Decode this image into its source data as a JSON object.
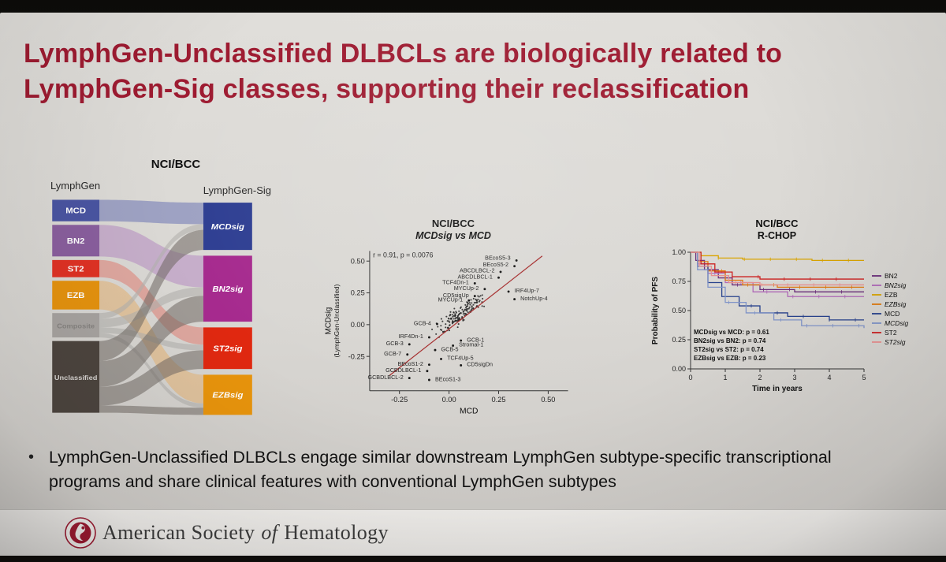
{
  "slide": {
    "title_line1": "LymphGen-Unclassified DLBCLs are biologically related to",
    "title_line2": "LymphGen-Sig classes, supporting their reclassification",
    "bullet_marker": "•",
    "bullet": "LymphGen-Unclassified DLBCLs engage similar downstream LymphGen subtype-specific transcriptional programs and share clinical features with conventional LymphGen subtypes",
    "footer": {
      "part1": "American Society",
      "of": "of",
      "part2": "Hematology"
    }
  },
  "chart_data": [
    {
      "id": "sankey",
      "type": "sankey",
      "title": "NCI/BCC",
      "left_label": "LymphGen",
      "right_label": "LymphGen-Sig",
      "left_nodes": [
        {
          "label": "MCD",
          "size": 30,
          "color": "#4a55a2",
          "text_color": "#ffffff"
        },
        {
          "label": "BN2",
          "size": 44,
          "color": "#8a5f9e",
          "text_color": "#ffffff"
        },
        {
          "label": "ST2",
          "size": 24,
          "color": "#e03224",
          "text_color": "#ffffff"
        },
        {
          "label": "EZB",
          "size": 40,
          "color": "#e6930e",
          "text_color": "#ffffff"
        },
        {
          "label": "Composite",
          "size": 34,
          "color": "#a8a4a1",
          "text_color": "#868380"
        },
        {
          "label": "Unclassified",
          "size": 100,
          "color": "#4d453f",
          "text_color": "#d9d6d3"
        }
      ],
      "right_nodes": [
        {
          "label": "MCDsig",
          "size": 66,
          "color": "#2e3e92"
        },
        {
          "label": "BN2sig",
          "size": 92,
          "color": "#a62a8e"
        },
        {
          "label": "ST2sig",
          "size": 58,
          "color": "#e02810"
        },
        {
          "label": "EZBsig",
          "size": 56,
          "color": "#e8940c"
        }
      ],
      "flows": [
        {
          "from": 0,
          "to": 0,
          "size": 30,
          "color": "#6b74b5",
          "opacity": 0.55
        },
        {
          "from": 1,
          "to": 1,
          "size": 44,
          "color": "#b183c0",
          "opacity": 0.5
        },
        {
          "from": 2,
          "to": 2,
          "size": 24,
          "color": "#e2756a",
          "opacity": 0.5
        },
        {
          "from": 3,
          "to": 3,
          "size": 40,
          "color": "#e8b06a",
          "opacity": 0.5
        },
        {
          "from": 4,
          "to": 0,
          "size": 8,
          "color": "#b3b0ad",
          "opacity": 0.6
        },
        {
          "from": 4,
          "to": 1,
          "size": 12,
          "color": "#b3b0ad",
          "opacity": 0.6
        },
        {
          "from": 4,
          "to": 2,
          "size": 8,
          "color": "#b3b0ad",
          "opacity": 0.6
        },
        {
          "from": 4,
          "to": 3,
          "size": 6,
          "color": "#b3b0ad",
          "opacity": 0.6
        },
        {
          "from": 5,
          "to": 0,
          "size": 28,
          "color": "#6f6862",
          "opacity": 0.55
        },
        {
          "from": 5,
          "to": 1,
          "size": 36,
          "color": "#6f6862",
          "opacity": 0.55
        },
        {
          "from": 5,
          "to": 2,
          "size": 26,
          "color": "#6f6862",
          "opacity": 0.55
        },
        {
          "from": 5,
          "to": 3,
          "size": 10,
          "color": "#6f6862",
          "opacity": 0.55
        }
      ]
    },
    {
      "id": "scatter",
      "type": "scatter",
      "title": "NCI/BCC",
      "subtitle": "MCDsig vs MCD",
      "annotation": "r = 0.91, p = 0.0076",
      "xlabel": "MCD",
      "ylabel_line1": "MCDsig",
      "ylabel_line2": "(LymphGen-Unclassified)",
      "xlim": [
        -0.4,
        0.6
      ],
      "ylim": [
        -0.52,
        0.58
      ],
      "xticks": [
        -0.25,
        0,
        0.25,
        0.5
      ],
      "yticks": [
        -0.25,
        0,
        0.25,
        0.5
      ],
      "regression": {
        "x1": -0.3,
        "y1": -0.4,
        "x2": 0.47,
        "y2": 0.54,
        "color": "#a42a2a"
      },
      "cloud": {
        "count": 150,
        "seed": 7
      },
      "labeled_points": [
        {
          "label": "BEcoS5-3",
          "x": 0.34,
          "y": 0.505,
          "lx": 0.31,
          "ly": 0.525,
          "anchor": "end"
        },
        {
          "label": "BEcoS5-2",
          "x": 0.33,
          "y": 0.46,
          "lx": 0.3,
          "ly": 0.47,
          "anchor": "end"
        },
        {
          "label": "ABCDLBCL-2",
          "x": 0.26,
          "y": 0.415,
          "lx": 0.23,
          "ly": 0.425,
          "anchor": "end"
        },
        {
          "label": "ABCDLBCL-1",
          "x": 0.25,
          "y": 0.37,
          "lx": 0.22,
          "ly": 0.375,
          "anchor": "end"
        },
        {
          "label": "TCF4Dn-1",
          "x": 0.13,
          "y": 0.325,
          "lx": 0.1,
          "ly": 0.33,
          "anchor": "end"
        },
        {
          "label": "MYCUp-2",
          "x": 0.18,
          "y": 0.28,
          "lx": 0.15,
          "ly": 0.285,
          "anchor": "end"
        },
        {
          "label": "IRF4Up-7",
          "x": 0.3,
          "y": 0.26,
          "lx": 0.33,
          "ly": 0.265,
          "anchor": "start"
        },
        {
          "label": "CD5sigUp",
          "x": 0.13,
          "y": 0.225,
          "lx": 0.1,
          "ly": 0.23,
          "anchor": "end"
        },
        {
          "label": "MYCUp-1",
          "x": 0.1,
          "y": 0.19,
          "lx": 0.07,
          "ly": 0.195,
          "anchor": "end"
        },
        {
          "label": "NotchUp-4",
          "x": 0.33,
          "y": 0.2,
          "lx": 0.36,
          "ly": 0.205,
          "anchor": "start"
        },
        {
          "label": "GCB-4",
          "x": -0.06,
          "y": 0.005,
          "lx": -0.09,
          "ly": 0.01,
          "anchor": "end"
        },
        {
          "label": "IRF4Dn-1",
          "x": -0.1,
          "y": -0.1,
          "lx": -0.13,
          "ly": -0.095,
          "anchor": "end"
        },
        {
          "label": "GCB-1",
          "x": 0.06,
          "y": -0.125,
          "lx": 0.09,
          "ly": -0.12,
          "anchor": "start"
        },
        {
          "label": "GCB-3",
          "x": -0.2,
          "y": -0.155,
          "lx": -0.23,
          "ly": -0.15,
          "anchor": "end"
        },
        {
          "label": "Stromal-1",
          "x": 0.02,
          "y": -0.165,
          "lx": 0.05,
          "ly": -0.16,
          "anchor": "start"
        },
        {
          "label": "GCB-5",
          "x": -0.07,
          "y": -0.2,
          "lx": -0.04,
          "ly": -0.195,
          "anchor": "start"
        },
        {
          "label": "GCB-7",
          "x": -0.21,
          "y": -0.235,
          "lx": -0.24,
          "ly": -0.23,
          "anchor": "end"
        },
        {
          "label": "TCF4Up-5",
          "x": -0.04,
          "y": -0.27,
          "lx": -0.01,
          "ly": -0.265,
          "anchor": "start"
        },
        {
          "label": "BEcoS1-2",
          "x": -0.1,
          "y": -0.315,
          "lx": -0.13,
          "ly": -0.31,
          "anchor": "end"
        },
        {
          "label": "CD5sigDn",
          "x": 0.06,
          "y": -0.32,
          "lx": 0.09,
          "ly": -0.315,
          "anchor": "start"
        },
        {
          "label": "GCBDLBCL-1",
          "x": -0.11,
          "y": -0.365,
          "lx": -0.14,
          "ly": -0.36,
          "anchor": "end"
        },
        {
          "label": "GCBDLBCL-2",
          "x": -0.2,
          "y": -0.42,
          "lx": -0.23,
          "ly": -0.415,
          "anchor": "end"
        },
        {
          "label": "BEcoS1-3",
          "x": -0.1,
          "y": -0.435,
          "lx": -0.07,
          "ly": -0.43,
          "anchor": "start"
        }
      ]
    },
    {
      "id": "km",
      "type": "line",
      "title": "NCI/BCC",
      "subtitle": "R-CHOP",
      "xlabel": "Time in years",
      "ylabel": "Probability of PFS",
      "xlim": [
        0,
        5
      ],
      "xticks": [
        0,
        1,
        2,
        3,
        4,
        5
      ],
      "yticks": [
        0,
        0.25,
        0.5,
        0.75,
        1.0
      ],
      "legend_position": "right",
      "annotations": [
        "MCDsig vs MCD: p = 0.61",
        "BN2sig vs BN2: p = 0.74",
        "ST2sig vs ST2: p = 0.74",
        "EZBsig vs EZB: p = 0.23"
      ],
      "series": [
        {
          "name": "BN2",
          "color": "#6a2d7a",
          "italic": false,
          "steps": [
            [
              0,
              1
            ],
            [
              0.15,
              0.93
            ],
            [
              0.4,
              0.85
            ],
            [
              0.8,
              0.78
            ],
            [
              1.2,
              0.72
            ],
            [
              2,
              0.68
            ],
            [
              3,
              0.66
            ],
            [
              5,
              0.66
            ]
          ]
        },
        {
          "name": "BN2sig",
          "color": "#b06ab8",
          "italic": true,
          "steps": [
            [
              0,
              1
            ],
            [
              0.2,
              0.9
            ],
            [
              0.5,
              0.82
            ],
            [
              1,
              0.74
            ],
            [
              1.8,
              0.66
            ],
            [
              2.8,
              0.62
            ],
            [
              5,
              0.62
            ]
          ]
        },
        {
          "name": "EZB",
          "color": "#d9a400",
          "italic": false,
          "steps": [
            [
              0,
              1
            ],
            [
              0.3,
              0.97
            ],
            [
              0.8,
              0.95
            ],
            [
              1.5,
              0.94
            ],
            [
              3.5,
              0.93
            ],
            [
              5,
              0.93
            ]
          ]
        },
        {
          "name": "EZBsig",
          "color": "#e07b10",
          "italic": true,
          "steps": [
            [
              0,
              1
            ],
            [
              0.2,
              0.92
            ],
            [
              0.5,
              0.84
            ],
            [
              1,
              0.76
            ],
            [
              1.5,
              0.72
            ],
            [
              2.5,
              0.7
            ],
            [
              5,
              0.7
            ]
          ]
        },
        {
          "name": "MCD",
          "color": "#27418c",
          "italic": false,
          "steps": [
            [
              0,
              1
            ],
            [
              0.2,
              0.88
            ],
            [
              0.5,
              0.74
            ],
            [
              0.9,
              0.62
            ],
            [
              1.4,
              0.54
            ],
            [
              2,
              0.48
            ],
            [
              2.8,
              0.45
            ],
            [
              4,
              0.42
            ],
            [
              5,
              0.42
            ]
          ]
        },
        {
          "name": "MCDsig",
          "color": "#8094c8",
          "italic": true,
          "steps": [
            [
              0,
              1
            ],
            [
              0.2,
              0.85
            ],
            [
              0.5,
              0.7
            ],
            [
              1,
              0.57
            ],
            [
              1.6,
              0.48
            ],
            [
              2.4,
              0.42
            ],
            [
              3.2,
              0.37
            ],
            [
              5,
              0.35
            ]
          ]
        },
        {
          "name": "ST2",
          "color": "#cc2020",
          "italic": false,
          "steps": [
            [
              0,
              1
            ],
            [
              0.3,
              0.9
            ],
            [
              0.7,
              0.83
            ],
            [
              1.2,
              0.79
            ],
            [
              2,
              0.77
            ],
            [
              5,
              0.77
            ]
          ]
        },
        {
          "name": "ST2sig",
          "color": "#e89090",
          "italic": true,
          "steps": [
            [
              0,
              1
            ],
            [
              0.25,
              0.88
            ],
            [
              0.6,
              0.8
            ],
            [
              1.1,
              0.74
            ],
            [
              2,
              0.72
            ],
            [
              5,
              0.72
            ]
          ]
        }
      ]
    }
  ]
}
